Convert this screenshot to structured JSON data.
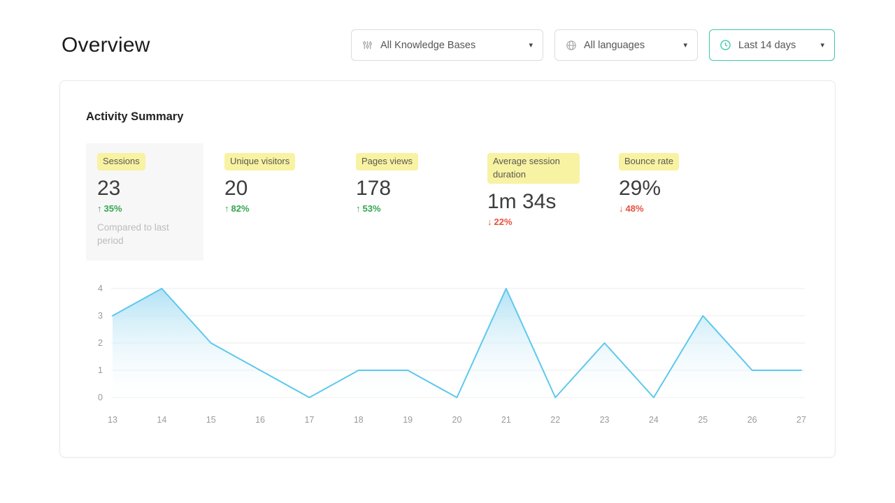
{
  "page": {
    "title": "Overview"
  },
  "filters": {
    "knowledge_bases": {
      "selected": "All Knowledge Bases",
      "icon": "knowledge-base-icon"
    },
    "languages": {
      "selected": "All languages",
      "icon": "globe-icon"
    },
    "date_range": {
      "selected": "Last 14 days",
      "icon": "clock-icon"
    }
  },
  "icons": {
    "chevron_down": "▾",
    "arrow_up": "↑",
    "arrow_down": "↓"
  },
  "card": {
    "title": "Activity Summary"
  },
  "metrics": [
    {
      "label": "Sessions",
      "value": "23",
      "change": "35%",
      "direction": "up",
      "note": "Compared to last period"
    },
    {
      "label": "Unique visitors",
      "value": "20",
      "change": "82%",
      "direction": "up"
    },
    {
      "label": "Pages views",
      "value": "178",
      "change": "53%",
      "direction": "up"
    },
    {
      "label": "Average session duration",
      "value": "1m 34s",
      "change": "22%",
      "direction": "down"
    },
    {
      "label": "Bounce rate",
      "value": "29%",
      "change": "48%",
      "direction": "down"
    }
  ],
  "chart_data": {
    "type": "area",
    "title": "",
    "xlabel": "",
    "ylabel": "",
    "x": [
      13,
      14,
      15,
      16,
      17,
      18,
      19,
      20,
      21,
      22,
      23,
      24,
      25,
      26,
      27
    ],
    "values": [
      3,
      4,
      2,
      1,
      0,
      1,
      1,
      0,
      4,
      0,
      2,
      0,
      3,
      1,
      1
    ],
    "ylim": [
      0,
      4
    ],
    "yticks": [
      0,
      1,
      2,
      3,
      4
    ],
    "grid": true,
    "legend": false,
    "line_color": "#5ec8ed",
    "fill_top": "#aee0f4",
    "fill_bottom": "#ffffff"
  },
  "colors": {
    "positive": "#33a64e",
    "negative": "#e8503c",
    "highlight": "#f8f2a3",
    "accent": "#3ec9a7",
    "gridline": "#ececec"
  }
}
